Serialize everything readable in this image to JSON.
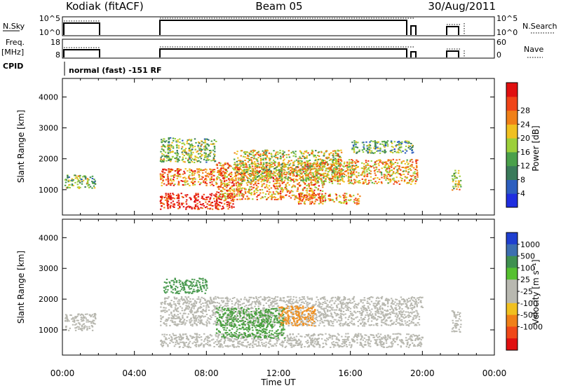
{
  "header": {
    "station": "Kodiak (fitACF)",
    "beam": "Beam 05",
    "date": "30/Aug/2011"
  },
  "panels": {
    "nsky_label": "N.Sky",
    "nsearch_label": "N.Search",
    "nsky_ticks": [
      "10^5",
      "10^0"
    ],
    "nsearch_ticks": [
      "10^5",
      "10^0"
    ],
    "freq_label_1": "Freq.",
    "freq_label_2": "[MHz]",
    "freq_ticks": [
      "18",
      "8"
    ],
    "nave_label": "Nave",
    "nave_ticks": [
      "60",
      "0"
    ],
    "cpid_label": "CPID",
    "cpid_text": "normal (fast) -151 RF"
  },
  "chart_data": [
    {
      "type": "heatmap",
      "quantity": "Power",
      "ylabel": "Slant Range [km]",
      "xlabel": "",
      "ylim": [
        180,
        4600
      ],
      "yticks": [
        1000,
        2000,
        3000,
        4000
      ],
      "xlim": [
        0,
        24
      ],
      "colorbar": {
        "label": "Power [dB]",
        "ticks": [
          "4",
          "8",
          "12",
          "16",
          "20",
          "24",
          "28"
        ],
        "colors": [
          "#1f2ee0",
          "#2d5fbf",
          "#3a7a5a",
          "#4aa04a",
          "#9ccf3a",
          "#f0c020",
          "#f08018",
          "#f04418",
          "#e01010"
        ]
      },
      "echo_regions": [
        {
          "t0": 0.1,
          "t1": 1.8,
          "r0": 1050,
          "r1": 1500,
          "level": 0.45
        },
        {
          "t0": 5.4,
          "t1": 9.5,
          "r0": 380,
          "r1": 900,
          "level": 0.95
        },
        {
          "t0": 5.4,
          "t1": 9.0,
          "r0": 1150,
          "r1": 1700,
          "level": 0.75
        },
        {
          "t0": 5.4,
          "t1": 8.5,
          "r0": 1900,
          "r1": 2700,
          "level": 0.45
        },
        {
          "t0": 8.5,
          "t1": 14.5,
          "r0": 700,
          "r1": 1900,
          "level": 0.7
        },
        {
          "t0": 9.5,
          "t1": 15.5,
          "r0": 1300,
          "r1": 2300,
          "level": 0.55
        },
        {
          "t0": 14.0,
          "t1": 19.7,
          "r0": 1200,
          "r1": 2000,
          "level": 0.65
        },
        {
          "t0": 13.0,
          "t1": 16.5,
          "r0": 550,
          "r1": 900,
          "level": 0.7
        },
        {
          "t0": 16.0,
          "t1": 19.5,
          "r0": 2200,
          "r1": 2600,
          "level": 0.35
        },
        {
          "t0": 21.6,
          "t1": 22.1,
          "r0": 1000,
          "r1": 1650,
          "level": 0.55
        }
      ]
    },
    {
      "type": "heatmap",
      "quantity": "Velocity",
      "ylabel": "Slant Range [km]",
      "xlabel": "Time UT",
      "ylim": [
        180,
        4600
      ],
      "yticks": [
        1000,
        2000,
        3000,
        4000
      ],
      "xlim": [
        0,
        24
      ],
      "xticks": [
        "00:00",
        "04:00",
        "08:00",
        "12:00",
        "16:00",
        "20:00",
        "00:00"
      ],
      "colorbar": {
        "label": "Velocity [m s⁻¹]",
        "ticks": [
          "1000",
          "500",
          "100",
          "25",
          "-25",
          "-100",
          "-500",
          "-1000"
        ],
        "colors": [
          "#1f3fd0",
          "#3d6fb0",
          "#3f9050",
          "#56c030",
          "#b8b8b0",
          "#b8b8b0",
          "#f0c020",
          "#f08018",
          "#f04818",
          "#e01010"
        ]
      },
      "echo_regions": [
        {
          "t0": 0.1,
          "t1": 1.8,
          "r0": 1000,
          "r1": 1550,
          "color": "#b8b8b0"
        },
        {
          "t0": 5.4,
          "t1": 20.0,
          "r0": 450,
          "r1": 900,
          "color": "#b8b8b0"
        },
        {
          "t0": 5.4,
          "t1": 19.8,
          "r0": 1150,
          "r1": 1700,
          "color": "#b8b8b0"
        },
        {
          "t0": 5.4,
          "t1": 20.0,
          "r0": 1700,
          "r1": 2100,
          "color": "#b8b8b0"
        },
        {
          "t0": 8.5,
          "t1": 12.3,
          "r0": 750,
          "r1": 1750,
          "color": "#4aa040"
        },
        {
          "t0": 12.0,
          "t1": 14.0,
          "r0": 1150,
          "r1": 1800,
          "color": "#f09020"
        },
        {
          "t0": 5.6,
          "t1": 8.0,
          "r0": 2200,
          "r1": 2700,
          "color": "#4a9a50"
        },
        {
          "t0": 21.6,
          "t1": 22.1,
          "r0": 950,
          "r1": 1650,
          "color": "#b8b8b0"
        }
      ]
    }
  ]
}
